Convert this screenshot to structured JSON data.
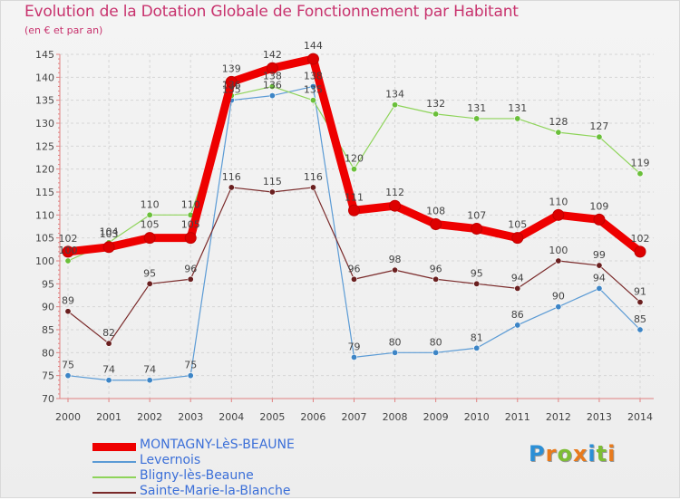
{
  "title": "Evolution de la Dotation Globale de Fonctionnement par Habitant",
  "subtitle": "(en € et par an)",
  "logo": {
    "letters": [
      "P",
      "r",
      "o",
      "x",
      "i",
      "t",
      "i"
    ],
    "colors": [
      "#2b8fd6",
      "#e87a1c",
      "#7dbd34",
      "#e87a1c",
      "#2b8fd6",
      "#7dbd34",
      "#e87a1c"
    ]
  },
  "chart_data": {
    "type": "line",
    "title": "Evolution de la Dotation Globale de Fonctionnement par Habitant",
    "subtitle": "(en € et par an)",
    "xlabel": "",
    "ylabel": "",
    "x": [
      "2000",
      "2001",
      "2002",
      "2003",
      "2004",
      "2005",
      "2006",
      "2007",
      "2008",
      "2009",
      "2010",
      "2011",
      "2012",
      "2013",
      "2014"
    ],
    "ylim": [
      70,
      145
    ],
    "yticks": [
      70,
      75,
      80,
      85,
      90,
      95,
      100,
      105,
      110,
      115,
      120,
      125,
      130,
      135,
      140,
      145
    ],
    "grid": true,
    "series": [
      {
        "name": "Levernois",
        "color": "#5b9bd5",
        "point_color": "#3d85c6",
        "emphasis": false,
        "values": [
          75,
          74,
          74,
          75,
          135,
          136,
          138,
          79,
          80,
          80,
          81,
          86,
          90,
          94,
          85
        ],
        "labels": [
          "75",
          "74",
          "74",
          "75",
          "135",
          "136",
          "138",
          "79",
          "80",
          "80",
          "81",
          "86",
          "90",
          "94",
          "85"
        ]
      },
      {
        "name": "Bligny-lès-Beaune",
        "color": "#8ed45a",
        "point_color": "#6abf3a",
        "emphasis": false,
        "values": [
          100,
          104,
          110,
          110,
          136,
          138,
          135,
          120,
          134,
          132,
          131,
          131,
          128,
          127,
          119
        ],
        "labels": [
          "100",
          "104",
          "110",
          "110",
          "136",
          "138",
          "135",
          "120",
          "134",
          "132",
          "131",
          "131",
          "128",
          "127",
          "119"
        ]
      },
      {
        "name": "Sainte-Marie-la-Blanche",
        "color": "#7a2a2a",
        "point_color": "#6a1f1f",
        "emphasis": false,
        "values": [
          89,
          82,
          95,
          96,
          116,
          115,
          116,
          96,
          98,
          96,
          95,
          94,
          100,
          99,
          91
        ],
        "labels": [
          "89",
          "82",
          "95",
          "96",
          "116",
          "115",
          "116",
          "96",
          "98",
          "96",
          "95",
          "94",
          "100",
          "99",
          "91"
        ]
      },
      {
        "name": "MONTAGNY-LèS-BEAUNE",
        "color": "#ee0000",
        "point_color": "#dd0000",
        "emphasis": true,
        "values": [
          102,
          103,
          105,
          105,
          139,
          142,
          144,
          111,
          112,
          108,
          107,
          105,
          110,
          109,
          102
        ],
        "labels": [
          "102",
          "103",
          "105",
          "105",
          "139",
          "142",
          "144",
          "111",
          "112",
          "108",
          "107",
          "105",
          "110",
          "109",
          "102"
        ]
      }
    ],
    "legend_order": [
      "MONTAGNY-LèS-BEAUNE",
      "Levernois",
      "Bligny-lès-Beaune",
      "Sainte-Marie-la-Blanche"
    ],
    "legend_position": "bottom-left"
  }
}
